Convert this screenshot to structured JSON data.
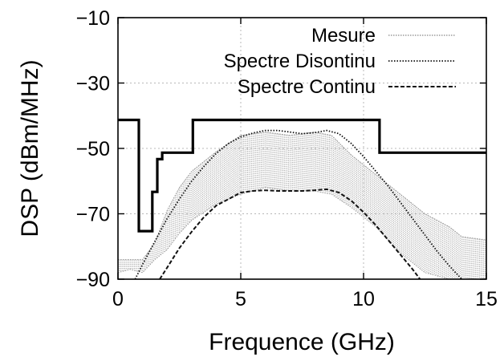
{
  "chart_data": {
    "type": "line",
    "title": "",
    "xlabel": "Frequence (GHz)",
    "ylabel": "DSP (dBm/MHz)",
    "xlim": [
      0,
      15
    ],
    "ylim": [
      -90,
      -10
    ],
    "xticks": [
      0,
      5,
      10,
      15
    ],
    "yticks": [
      -90,
      -70,
      -50,
      -30,
      -10
    ],
    "grid": true,
    "legend_position": "top-right",
    "series": [
      {
        "name": "Mesure",
        "style": "light gray dotted, dense measured spectrum band",
        "color": "#aaaaaa",
        "x": [
          0,
          0.5,
          1.0,
          1.5,
          2.0,
          2.5,
          3.0,
          4.0,
          5.0,
          6.0,
          7.0,
          8.0,
          8.7,
          9.5,
          10.5,
          11.5,
          12.5,
          13.5,
          14.0,
          15.0
        ],
        "upper": [
          -84,
          -84,
          -84,
          -79,
          -69,
          -62,
          -57,
          -51,
          -46,
          -45,
          -46,
          -45,
          -46,
          -52,
          -58,
          -64,
          -70,
          -74,
          -77,
          -78
        ],
        "lower": [
          -88,
          -87,
          -88,
          -84,
          -81,
          -76,
          -72,
          -67,
          -64,
          -62,
          -63,
          -63,
          -64,
          -68,
          -74,
          -82,
          -88,
          -90,
          -90,
          -90
        ]
      },
      {
        "name": "Spectre Disontinu",
        "style": "black dotted",
        "color": "#111111",
        "x": [
          0.7,
          1.0,
          1.5,
          2.0,
          2.5,
          3.0,
          3.5,
          4.0,
          4.5,
          5.0,
          5.5,
          6.0,
          6.5,
          7.0,
          7.5,
          8.0,
          8.5,
          9.0,
          9.5,
          10.0,
          10.5,
          11.0,
          11.5,
          12.0,
          12.5,
          13.0,
          13.5,
          14.0
        ],
        "y": [
          -90,
          -85.5,
          -78.5,
          -71.5,
          -65.5,
          -60,
          -55.5,
          -51.5,
          -48.5,
          -46.5,
          -45.3,
          -44.5,
          -44.5,
          -45,
          -45.5,
          -45.2,
          -44.5,
          -45.5,
          -48.5,
          -52.5,
          -57,
          -61.5,
          -66.5,
          -71.5,
          -76.5,
          -81.5,
          -86,
          -90
        ]
      },
      {
        "name": "Spectre Continu",
        "style": "black dashed",
        "color": "#111111",
        "x": [
          1.7,
          2.0,
          2.5,
          3.0,
          3.5,
          4.0,
          4.5,
          5.0,
          5.5,
          6.0,
          6.5,
          7.0,
          7.5,
          8.0,
          8.5,
          9.0,
          9.5,
          10.0,
          10.5,
          11.0,
          11.5,
          12.0,
          12.3
        ],
        "y": [
          -90,
          -86.5,
          -80.5,
          -75.5,
          -71,
          -67.5,
          -65.5,
          -63.5,
          -63,
          -62.8,
          -63,
          -63,
          -63,
          -62.8,
          -62.5,
          -63.5,
          -66,
          -69.5,
          -73.5,
          -78,
          -82.5,
          -87,
          -90
        ]
      },
      {
        "name": "",
        "style": "black solid thick (spectral mask)",
        "color": "#000000",
        "x": [
          0,
          0.85,
          0.85,
          1.4,
          1.4,
          1.6,
          1.6,
          1.8,
          1.8,
          3.05,
          3.05,
          10.65,
          10.65,
          15
        ],
        "y": [
          -41.3,
          -41.3,
          -75.3,
          -75.3,
          -63.3,
          -63.3,
          -53.3,
          -53.3,
          -51.3,
          -51.3,
          -41.3,
          -41.3,
          -51.3,
          -51.3
        ]
      }
    ]
  }
}
